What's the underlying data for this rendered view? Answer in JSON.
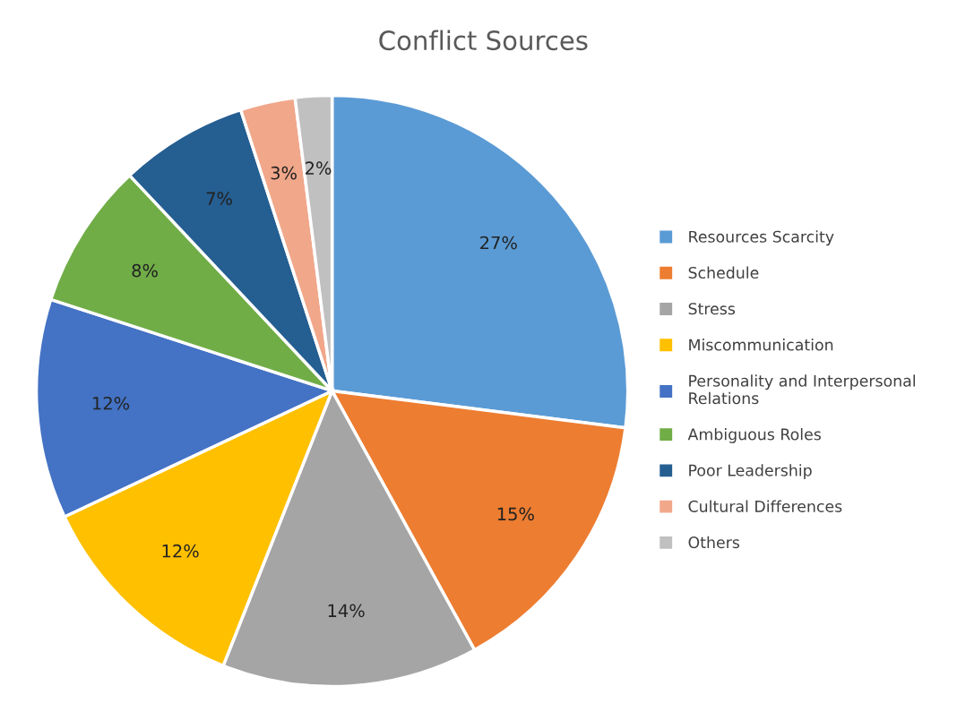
{
  "chart_data": {
    "type": "pie",
    "title": "Conflict Sources",
    "categories": [
      "Resources Scarcity",
      "Schedule",
      "Stress",
      "Miscommunication",
      "Personality and Interpersonal Relations",
      "Ambiguous Roles",
      "Poor Leadership",
      "Cultural Differences",
      "Others"
    ],
    "values": [
      27,
      15,
      14,
      12,
      12,
      8,
      7,
      3,
      2
    ],
    "value_labels": [
      "27%",
      "15%",
      "14%",
      "12%",
      "12%",
      "8%",
      "7%",
      "3%",
      "2%"
    ],
    "colors": [
      "#5b9bd5",
      "#ed7d31",
      "#a5a5a5",
      "#ffc000",
      "#4472c4",
      "#70ad47",
      "#255e91",
      "#f1a78a",
      "#c0c0c0"
    ],
    "legend": "right"
  }
}
